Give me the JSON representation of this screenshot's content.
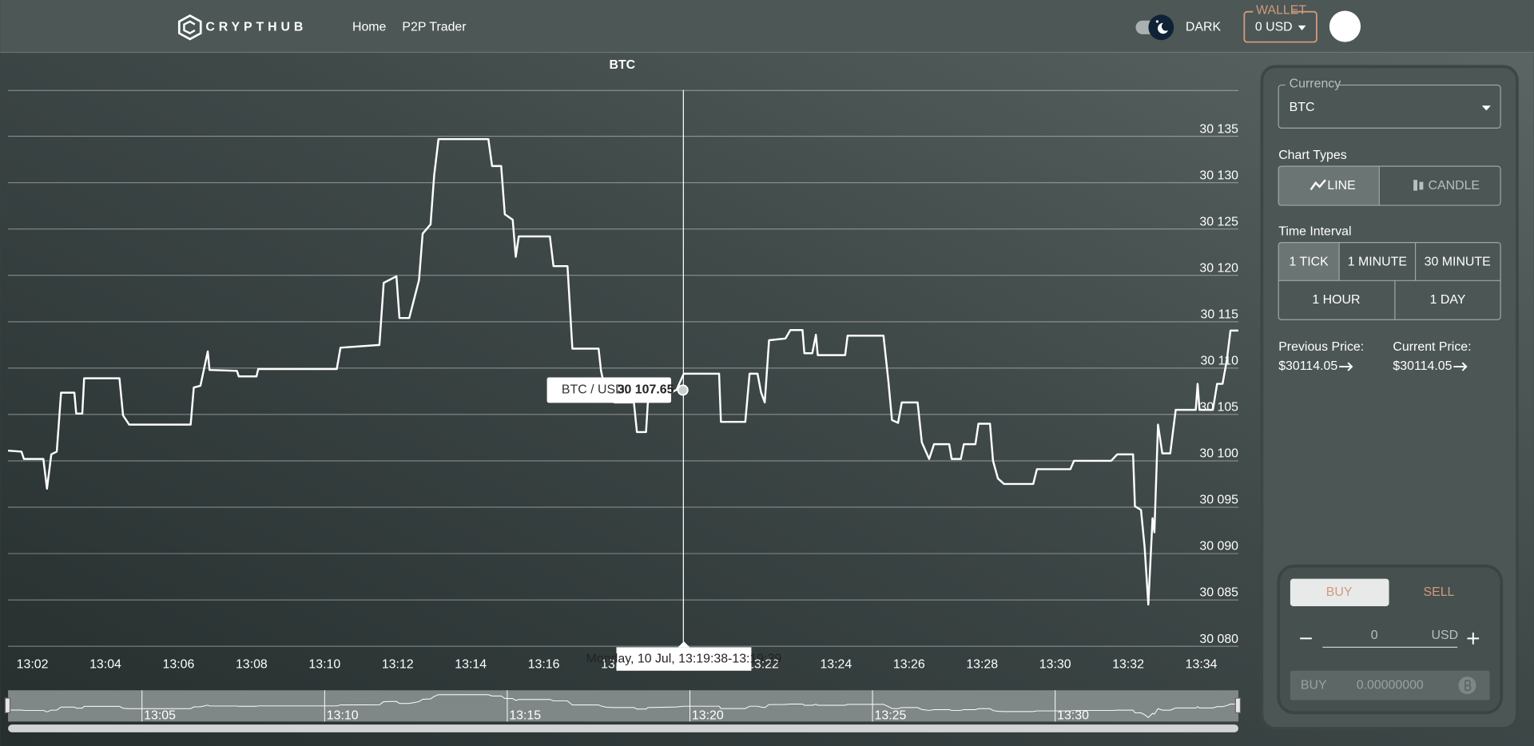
{
  "header": {
    "brand": "CRYPTHUB",
    "nav": [
      "Home",
      "P2P Trader"
    ],
    "theme": "DARK",
    "wallet_label": "WALLET",
    "wallet": "0 USD"
  },
  "chart_data": {
    "type": "line",
    "title": "BTC",
    "color": "#ffffff",
    "x": [
      "13:01:20",
      "13:01:42",
      "13:01:46",
      "13:02:18",
      "13:02:24",
      "13:02:31",
      "13:02:40",
      "13:02:47",
      "13:03:09",
      "13:03:12",
      "13:03:22",
      "13:03:25",
      "13:04:23",
      "13:04:29",
      "13:04:39",
      "13:06:20",
      "13:06:25",
      "13:06:36",
      "13:06:48",
      "13:06:51",
      "13:07:36",
      "13:07:39",
      "13:08:08",
      "13:08:11",
      "13:10:20",
      "13:10:26",
      "13:11:30",
      "13:11:37",
      "13:11:58",
      "13:12:03",
      "13:12:19",
      "13:12:35",
      "13:12:41",
      "13:12:54",
      "13:13:00",
      "13:13:07",
      "13:14:29",
      "13:14:35",
      "13:14:50",
      "13:14:56",
      "13:15:09",
      "13:15:14",
      "13:15:19",
      "13:16:10",
      "13:16:16",
      "13:16:39",
      "13:16:47",
      "13:17:30",
      "13:17:34",
      "13:17:43",
      "13:17:56",
      "13:18:28",
      "13:18:33",
      "13:18:48",
      "13:18:51",
      "13:19:16",
      "13:19:38",
      "13:19:50",
      "13:20:48",
      "13:20:51",
      "13:21:31",
      "13:21:38",
      "13:21:51",
      "13:21:57",
      "13:22:03",
      "13:22:10",
      "13:22:37",
      "13:22:45",
      "13:23:05",
      "13:23:08",
      "13:23:21",
      "13:23:27",
      "13:23:30",
      "13:24:15",
      "13:24:19",
      "13:25:18",
      "13:25:26",
      "13:25:32",
      "13:25:42",
      "13:25:48",
      "13:26:14",
      "13:26:21",
      "13:26:33",
      "13:26:41",
      "13:27:06",
      "13:27:10",
      "13:27:25",
      "13:27:30",
      "13:27:49",
      "13:27:54",
      "13:28:13",
      "13:28:18",
      "13:28:26",
      "13:28:36",
      "13:29:24",
      "13:29:30",
      "13:30:25",
      "13:30:31",
      "13:31:32",
      "13:31:42",
      "13:32:08",
      "13:32:11",
      "13:32:21",
      "13:32:27",
      "13:32:33",
      "13:32:40",
      "13:32:43",
      "13:32:49",
      "13:32:56",
      "13:33:09",
      "13:33:18",
      "13:33:51",
      "13:33:54",
      "13:33:57",
      "13:34:19",
      "13:34:26",
      "13:34:35",
      "13:34:42",
      "13:34:48",
      "13:35:01"
    ],
    "values": [
      30101.1,
      30101.0,
      30100.2,
      30100.2,
      30097.0,
      30100.7,
      30101.0,
      30107.35,
      30107.35,
      30105.1,
      30105.1,
      30108.9,
      30108.9,
      30104.9,
      30103.9,
      30103.9,
      30107.9,
      30108.1,
      30111.8,
      30109.8,
      30109.7,
      30109.1,
      30109.1,
      30109.9,
      30109.9,
      30112.2,
      30112.5,
      30119.2,
      30119.9,
      30115.4,
      30115.4,
      30119.5,
      30124.5,
      30125.5,
      30130.8,
      30134.7,
      30134.7,
      30131.8,
      30131.8,
      30126.6,
      30126.0,
      30122.0,
      30124.2,
      30124.2,
      30121.0,
      30121.0,
      30112.1,
      30112.1,
      30109.7,
      30107.0,
      30106.3,
      30106.3,
      30103.1,
      30103.1,
      30106.3,
      30107.0,
      30107.65,
      30109.4,
      30109.4,
      30104.2,
      30104.2,
      30109.4,
      30109.4,
      30107.35,
      30106.3,
      30113.0,
      30113.2,
      30114.1,
      30114.1,
      30111.6,
      30111.6,
      30113.6,
      30111.4,
      30111.4,
      30113.5,
      30113.5,
      30108.6,
      30104.4,
      30104.1,
      30106.3,
      30106.3,
      30102.0,
      30100.2,
      30101.8,
      30101.8,
      30100.2,
      30100.2,
      30101.8,
      30101.8,
      30104.0,
      30104.0,
      30100.0,
      30098.1,
      30097.5,
      30097.5,
      30099.1,
      30099.1,
      30100.0,
      30100.0,
      30100.7,
      30100.7,
      30095.1,
      30094.7,
      30090.7,
      30084.5,
      30093.8,
      30092.3,
      30103.9,
      30100.8,
      30100.8,
      30105.5,
      30105.5,
      30108.3,
      30105.5,
      30105.5,
      30108.3,
      30108.3,
      30110.9,
      30114.05,
      30114.05
    ],
    "xlim": [
      "13:01:20",
      "13:35:01"
    ],
    "xticks": [
      "13:02",
      "13:04",
      "13:06",
      "13:08",
      "13:10",
      "13:12",
      "13:14",
      "13:16",
      "13:18",
      "13:20",
      "13:22",
      "13:24",
      "13:26",
      "13:28",
      "13:30",
      "13:32",
      "13:34"
    ],
    "ylim": [
      30080,
      30140
    ],
    "yticks": [
      {
        "value": 30080,
        "label": "30 080"
      },
      {
        "value": 30085,
        "label": "30 085"
      },
      {
        "value": 30090,
        "label": "30 090"
      },
      {
        "value": 30095,
        "label": "30 095"
      },
      {
        "value": 30100,
        "label": "30 100"
      },
      {
        "value": 30105,
        "label": "30 105"
      },
      {
        "value": 30110,
        "label": "30 110"
      },
      {
        "value": 30115,
        "label": "30 115"
      },
      {
        "value": 30120,
        "label": "30 120"
      },
      {
        "value": 30125,
        "label": "30 125"
      },
      {
        "value": 30130,
        "label": "30 130"
      },
      {
        "value": 30135,
        "label": "30 135"
      }
    ],
    "grid": true,
    "navigator_labels": [
      "13:05",
      "13:10",
      "13:15",
      "13:20",
      "13:25",
      "13:30"
    ],
    "tooltip": {
      "series": "BTC / USD:",
      "value": "30 107.65",
      "time": "Monday, 10 Jul, 13:19:38-13:19:39"
    }
  },
  "sidebar": {
    "currency_label": "Currency",
    "currency": "BTC",
    "chart_types_label": "Chart Types",
    "chart_types": [
      "LINE",
      "CANDLE"
    ],
    "time_interval_label": "Time Interval",
    "time_intervals": [
      "1 TICK",
      "1 MINUTE",
      "30 MINUTE",
      "1 HOUR",
      "1 DAY"
    ],
    "previous_price_label": "Previous Price:",
    "previous_price": "$30114.05",
    "current_price_label": "Current Price:",
    "current_price": "$30114.05",
    "trade_tabs": [
      "BUY",
      "SELL"
    ],
    "amount": 0,
    "amount_unit": "USD",
    "order_label": "BUY",
    "order_amount": "0.00000000"
  }
}
